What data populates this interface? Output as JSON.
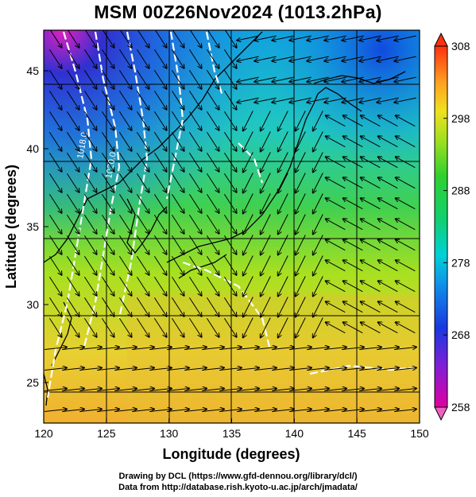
{
  "title": "MSM 00Z26Nov2024 (1013.2hPa)",
  "chart_data": {
    "type": "heatmap",
    "title": "MSM 00Z26Nov2024 (1013.2hPa)",
    "xlabel": "Longitude (degrees)",
    "ylabel": "Latitude  (degrees)",
    "xlim": [
      120,
      150
    ],
    "ylim": [
      22.4,
      47.6
    ],
    "x_ticks": [
      "120",
      "125",
      "130",
      "135",
      "140",
      "145",
      "150"
    ],
    "x_tick_values": [
      120,
      125,
      130,
      135,
      140,
      145,
      150
    ],
    "y_ticks": [
      "25",
      "30",
      "35",
      "40",
      "45"
    ],
    "y_tick_values": [
      25,
      30,
      35,
      40,
      45
    ],
    "grid": true,
    "colorbar": {
      "labels": [
        "258",
        "268",
        "278",
        "288",
        "298",
        "308"
      ],
      "values": [
        258,
        268,
        278,
        288,
        298,
        308
      ],
      "range": [
        258,
        308
      ],
      "colors": [
        "#e0008a",
        "#6020d0",
        "#1040e0",
        "#00c8e0",
        "#20d070",
        "#40d020",
        "#c0e020",
        "#ffa020",
        "#ff4010"
      ]
    },
    "contour_labels": [
      "1018.0",
      "1020.0"
    ]
  },
  "credits": {
    "line1": "Drawing by DCL (https://www.gfd-dennou.org/library/dcl/)",
    "line2": "Data from http://database.rish.kyoto-u.ac.jp/arch/jmadata/"
  }
}
